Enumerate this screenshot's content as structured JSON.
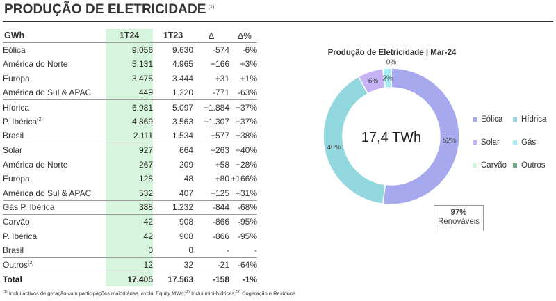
{
  "page": {
    "title": "PRODUÇÃO DE ELETRICIDADE",
    "title_footnote": "(1)"
  },
  "table": {
    "headers": [
      "GWh",
      "1T24",
      "1T23",
      "Δ",
      "Δ%"
    ],
    "rows": [
      {
        "label": "Eólica",
        "sup": "",
        "indent": false,
        "group_start": true,
        "v1": "9.056",
        "v2": "9.630",
        "d": "-574",
        "dp": "-6%"
      },
      {
        "label": "América do Norte",
        "sup": "",
        "indent": true,
        "group_start": false,
        "v1": "5.131",
        "v2": "4.965",
        "d": "+166",
        "dp": "+3%"
      },
      {
        "label": "Europa",
        "sup": "",
        "indent": true,
        "group_start": false,
        "v1": "3.475",
        "v2": "3.444",
        "d": "+31",
        "dp": "+1%"
      },
      {
        "label": "América do Sul & APAC",
        "sup": "",
        "indent": true,
        "group_start": false,
        "v1": "449",
        "v2": "1.220",
        "d": "-771",
        "dp": "-63%"
      },
      {
        "label": "Hídrica",
        "sup": "",
        "indent": false,
        "group_start": true,
        "v1": "6.981",
        "v2": "5.097",
        "d": "+1.884",
        "dp": "+37%"
      },
      {
        "label": "P. Ibérica",
        "sup": "(2)",
        "indent": true,
        "group_start": false,
        "v1": "4.869",
        "v2": "3.563",
        "d": "+1.307",
        "dp": "+37%"
      },
      {
        "label": "Brasil",
        "sup": "",
        "indent": true,
        "group_start": false,
        "v1": "2.111",
        "v2": "1.534",
        "d": "+577",
        "dp": "+38%"
      },
      {
        "label": "Solar",
        "sup": "",
        "indent": false,
        "group_start": true,
        "v1": "927",
        "v2": "664",
        "d": "+263",
        "dp": "+40%"
      },
      {
        "label": "América do Norte",
        "sup": "",
        "indent": true,
        "group_start": false,
        "v1": "267",
        "v2": "209",
        "d": "+58",
        "dp": "+28%"
      },
      {
        "label": "Europa",
        "sup": "",
        "indent": true,
        "group_start": false,
        "v1": "128",
        "v2": "48",
        "d": "+80",
        "dp": "+166%"
      },
      {
        "label": "América do Sul & APAC",
        "sup": "",
        "indent": true,
        "group_start": false,
        "v1": "532",
        "v2": "407",
        "d": "+125",
        "dp": "+31%"
      },
      {
        "label": "Gás P. Ibérica",
        "sup": "",
        "indent": false,
        "group_start": true,
        "v1": "388",
        "v2": "1.232",
        "d": "-844",
        "dp": "-68%"
      },
      {
        "label": "Carvão",
        "sup": "",
        "indent": false,
        "group_start": true,
        "v1": "42",
        "v2": "908",
        "d": "-866",
        "dp": "-95%"
      },
      {
        "label": "P. Ibérica",
        "sup": "",
        "indent": true,
        "group_start": false,
        "v1": "42",
        "v2": "908",
        "d": "-866",
        "dp": "-95%"
      },
      {
        "label": "Brasil",
        "sup": "",
        "indent": true,
        "group_start": false,
        "v1": "0",
        "v2": "0",
        "d": "-",
        "dp": "-"
      },
      {
        "label": "Outros",
        "sup": "(3)",
        "indent": false,
        "group_start": true,
        "v1": "12",
        "v2": "32",
        "d": "-21",
        "dp": "-64%"
      }
    ],
    "total": {
      "label": "Total",
      "v1": "17.405",
      "v2": "17.563",
      "d": "-158",
      "dp": "-1%"
    }
  },
  "footnote": {
    "n1": "(1)",
    "t1": " Inclui activos de geração com participações maioritárias, exclui Equity MWs;",
    "n2": "(2)",
    "t2": " Inclui mini-hídricas;",
    "n3": "(3)",
    "t3": " Cogeração e Resíduos"
  },
  "chart_data": {
    "type": "pie",
    "title": "Produção de Eletricidade | Mar-24",
    "center_label": "17,4 TWh",
    "categories": [
      "Eólica",
      "Hídrica",
      "Solar",
      "Gás",
      "Carvão",
      "Outros"
    ],
    "values": [
      52,
      40,
      6,
      2,
      0,
      0
    ],
    "data_labels": [
      "52%",
      "40%",
      "6%",
      "2%",
      "0%",
      ""
    ],
    "colors": [
      "#a7a9ee",
      "#93d7df",
      "#c6b3f5",
      "#a7ecf4",
      "#cdf7d4",
      "#6bb08a"
    ],
    "legend_position": "right",
    "annotation": {
      "value": "97%",
      "label": "Renováveis"
    }
  }
}
